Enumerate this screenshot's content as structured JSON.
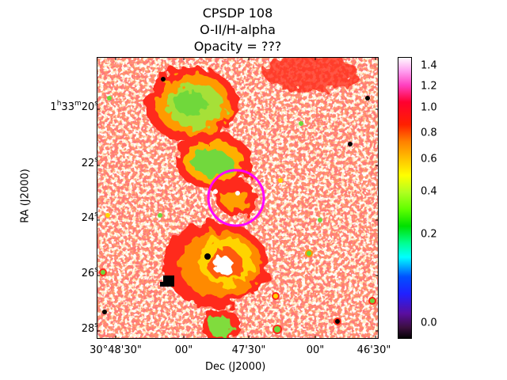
{
  "title": {
    "line1": "CPSDP 108",
    "line2": "O-II/H-alpha",
    "line3": "Opacity = ???"
  },
  "axes": {
    "xlabel": "Dec (J2000)",
    "ylabel": "RA (J2000)",
    "x_ticks": [
      "30°48'30\"",
      "00\"",
      "47'30\"",
      "00\"",
      "46'30\""
    ],
    "y_ticks": [
      {
        "h": "1",
        "hu": "h",
        "m": "33",
        "mu": "m",
        "s": "20",
        "su": "s"
      },
      {
        "s": "22",
        "su": "s"
      },
      {
        "s": "24",
        "su": "s"
      },
      {
        "s": "26",
        "su": "s"
      },
      {
        "s": "28",
        "su": "s"
      }
    ]
  },
  "colorbar": {
    "ticks": [
      "0.0",
      "0.2",
      "0.4",
      "0.6",
      "0.8",
      "1.0",
      "1.2",
      "1.4"
    ],
    "colormap": "gist_ncar-like (black → purple → blue → cyan → green → yellow → orange → red → pink → white)"
  },
  "image": {
    "description_colors": {
      "background": "#ffffff",
      "noise": "#ff2020",
      "nebula_core": "#7ddc3c",
      "nebula_mid": "#ffb000",
      "circle": "#ff00ff"
    }
  }
}
